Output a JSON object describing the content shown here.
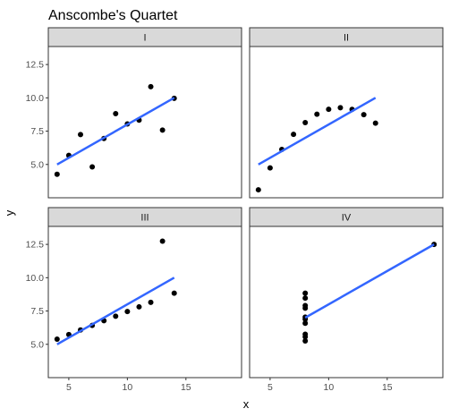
{
  "chart_data": {
    "type": "scatter",
    "title": "Anscombe's Quartet",
    "xlabel": "x",
    "ylabel": "y",
    "xlim": [
      3.25,
      19.75
    ],
    "ylim": [
      2.5,
      13.85
    ],
    "x_ticks": [
      5,
      10,
      15
    ],
    "y_ticks": [
      5.0,
      7.5,
      10.0,
      12.5
    ],
    "y_tick_labels": [
      "5.0",
      "7.5",
      "10.0",
      "12.5"
    ],
    "grid": false,
    "colors": {
      "points": "#000000",
      "fit_line": "#3366ff",
      "strip_fill": "#d9d9d9",
      "strip_border": "#333333",
      "panel_border": "#333333"
    },
    "panels": [
      {
        "label": "I",
        "points": [
          [
            10,
            8.04
          ],
          [
            8,
            6.95
          ],
          [
            13,
            7.58
          ],
          [
            9,
            8.81
          ],
          [
            11,
            8.33
          ],
          [
            14,
            9.96
          ],
          [
            6,
            7.24
          ],
          [
            4,
            4.26
          ],
          [
            12,
            10.84
          ],
          [
            7,
            4.82
          ],
          [
            5,
            5.68
          ]
        ],
        "fit": [
          [
            4,
            5.0
          ],
          [
            14,
            10.0
          ]
        ]
      },
      {
        "label": "II",
        "points": [
          [
            10,
            9.14
          ],
          [
            8,
            8.14
          ],
          [
            13,
            8.74
          ],
          [
            9,
            8.77
          ],
          [
            11,
            9.26
          ],
          [
            14,
            8.1
          ],
          [
            6,
            6.13
          ],
          [
            4,
            3.1
          ],
          [
            12,
            9.13
          ],
          [
            7,
            7.26
          ],
          [
            5,
            4.74
          ]
        ],
        "fit": [
          [
            4,
            5.0
          ],
          [
            14,
            10.0
          ]
        ]
      },
      {
        "label": "III",
        "points": [
          [
            10,
            7.46
          ],
          [
            8,
            6.77
          ],
          [
            13,
            12.74
          ],
          [
            9,
            7.11
          ],
          [
            11,
            7.81
          ],
          [
            14,
            8.84
          ],
          [
            6,
            6.08
          ],
          [
            4,
            5.39
          ],
          [
            12,
            8.15
          ],
          [
            7,
            6.42
          ],
          [
            5,
            5.73
          ]
        ],
        "fit": [
          [
            4,
            5.0
          ],
          [
            14,
            10.0
          ]
        ]
      },
      {
        "label": "IV",
        "points": [
          [
            8,
            6.58
          ],
          [
            8,
            5.76
          ],
          [
            8,
            7.71
          ],
          [
            8,
            8.84
          ],
          [
            8,
            8.47
          ],
          [
            8,
            7.04
          ],
          [
            8,
            5.25
          ],
          [
            19,
            12.5
          ],
          [
            8,
            5.56
          ],
          [
            8,
            7.91
          ],
          [
            8,
            6.89
          ]
        ],
        "fit": [
          [
            8,
            7.0
          ],
          [
            19,
            12.5
          ]
        ]
      }
    ]
  }
}
